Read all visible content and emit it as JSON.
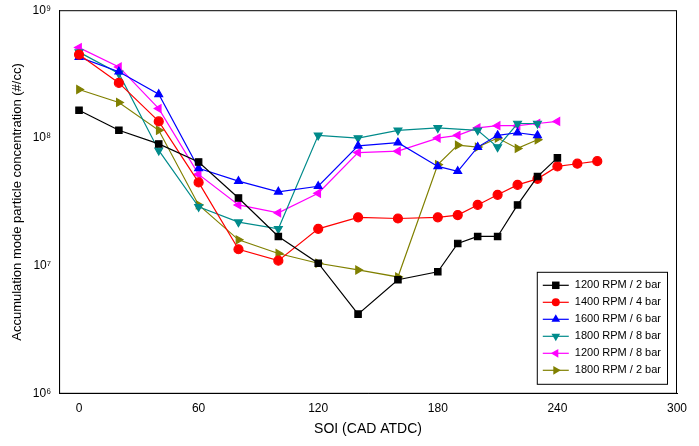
{
  "chart_data": {
    "type": "line",
    "x_label": "SOI (CAD ATDC)",
    "y_label": "Accumulation mode particle concentration (#/cc)",
    "log": "y",
    "grid": false,
    "legend": "lower right",
    "xlim": [
      -10,
      300
    ],
    "xticks": [
      0,
      60,
      120,
      180,
      240,
      300
    ],
    "ylim": [
      1000000,
      1000000000
    ],
    "yticks": [
      {
        "value": 1000000,
        "label": "10⁶"
      },
      {
        "value": 10000000,
        "label": "10⁷"
      },
      {
        "value": 100000000,
        "label": "10⁸"
      },
      {
        "value": 1000000000,
        "label": "10⁹"
      }
    ],
    "series": [
      {
        "name": "1200 RPM / 2 bar",
        "color": "#000000",
        "marker": "square",
        "line_style": "solid",
        "x": [
          0,
          20,
          40,
          60,
          80,
          100,
          120,
          140,
          160,
          180,
          190,
          200,
          210,
          220,
          230,
          240
        ],
        "values": [
          165000000,
          115000000,
          90000000,
          65000000,
          34000000,
          17000000,
          10500000,
          4200000,
          7800000,
          9000000,
          15000000,
          17000000,
          17000000,
          30000000,
          50000000,
          70000000
        ]
      },
      {
        "name": "1400 RPM / 4 bar",
        "color": "#ff0000",
        "marker": "circle",
        "line_style": "solid",
        "x": [
          0,
          20,
          40,
          60,
          80,
          100,
          120,
          140,
          160,
          180,
          190,
          200,
          210,
          220,
          230,
          240,
          250,
          260
        ],
        "values": [
          450000000,
          270000000,
          135000000,
          45000000,
          13500000,
          11000000,
          19500000,
          24000000,
          23500000,
          24000000,
          25000000,
          30000000,
          36000000,
          43000000,
          48000000,
          60000000,
          63000000,
          66000000
        ]
      },
      {
        "name": "1600 RPM / 6 bar",
        "color": "#0000ff",
        "marker": "triangle-up",
        "line_style": "solid",
        "x": [
          0,
          20,
          40,
          60,
          80,
          100,
          120,
          140,
          160,
          180,
          190,
          200,
          210,
          220,
          230
        ],
        "values": [
          430000000,
          330000000,
          220000000,
          58000000,
          46000000,
          38000000,
          42000000,
          87000000,
          92000000,
          60000000,
          55000000,
          85000000,
          105000000,
          110000000,
          105000000
        ]
      },
      {
        "name": "1800 RPM / 8 bar",
        "color": "#008b8b",
        "marker": "triangle-down",
        "line_style": "solid",
        "x": [
          0,
          20,
          40,
          60,
          80,
          100,
          120,
          140,
          160,
          180,
          200,
          210,
          220,
          230
        ],
        "values": [
          470000000,
          320000000,
          80000000,
          29000000,
          22000000,
          19500000,
          105000000,
          100000000,
          115000000,
          120000000,
          115000000,
          85000000,
          130000000,
          130000000
        ]
      },
      {
        "name": "1200 RPM / 8 bar",
        "color": "#ff00ff",
        "marker": "triangle-left",
        "line_style": "solid",
        "x": [
          0,
          20,
          40,
          60,
          80,
          100,
          120,
          140,
          160,
          180,
          190,
          200,
          210,
          220,
          230,
          240
        ],
        "values": [
          510000000,
          360000000,
          170000000,
          52000000,
          30000000,
          26000000,
          37000000,
          77000000,
          79000000,
          100000000,
          105000000,
          120000000,
          125000000,
          125000000,
          130000000,
          135000000
        ]
      },
      {
        "name": "1800 RPM / 2 bar",
        "color": "#808000",
        "marker": "triangle-right",
        "line_style": "solid",
        "x": [
          0,
          20,
          40,
          60,
          80,
          100,
          120,
          140,
          160,
          180,
          190,
          200,
          210,
          220,
          230
        ],
        "values": [
          240000000,
          190000000,
          115000000,
          30000000,
          16000000,
          12500000,
          10500000,
          9300000,
          8200000,
          62000000,
          88000000,
          85000000,
          100000000,
          83000000,
          97000000
        ]
      }
    ]
  }
}
